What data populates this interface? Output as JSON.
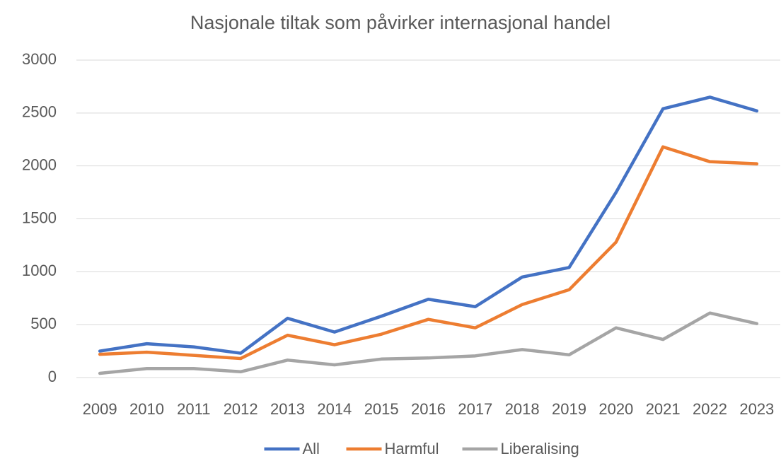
{
  "chart_data": {
    "type": "line",
    "title": "Nasjonale tiltak som påvirker internasjonal handel",
    "categories": [
      "2009",
      "2010",
      "2011",
      "2012",
      "2013",
      "2014",
      "2015",
      "2016",
      "2017",
      "2018",
      "2019",
      "2020",
      "2021",
      "2022",
      "2023"
    ],
    "series": [
      {
        "name": "All",
        "color": "#4472c4",
        "values": [
          250,
          320,
          290,
          230,
          560,
          430,
          580,
          740,
          670,
          950,
          1040,
          1750,
          2540,
          2650,
          2520
        ]
      },
      {
        "name": "Harmful",
        "color": "#ed7d31",
        "values": [
          220,
          240,
          210,
          180,
          400,
          310,
          410,
          550,
          470,
          690,
          830,
          1280,
          2180,
          2040,
          2020
        ]
      },
      {
        "name": "Liberalising",
        "color": "#a5a5a5",
        "values": [
          40,
          85,
          85,
          55,
          165,
          120,
          175,
          185,
          205,
          265,
          215,
          470,
          360,
          610,
          510
        ]
      }
    ],
    "ylim": [
      0,
      3000
    ],
    "yticks": [
      0,
      500,
      1000,
      1500,
      2000,
      2500,
      3000
    ],
    "grid": true,
    "legend": "bottom"
  }
}
